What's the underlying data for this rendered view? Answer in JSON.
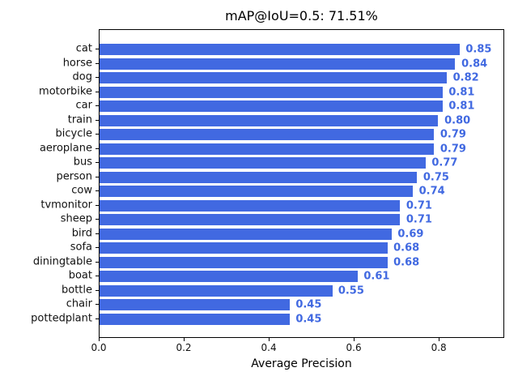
{
  "chart_data": {
    "type": "bar",
    "orientation": "horizontal",
    "title": "mAP@IoU=0.5: 71.51%",
    "xlabel": "Average Precision",
    "ylabel": "",
    "categories": [
      "cat",
      "horse",
      "dog",
      "motorbike",
      "car",
      "train",
      "bicycle",
      "aeroplane",
      "bus",
      "person",
      "cow",
      "tvmonitor",
      "sheep",
      "bird",
      "sofa",
      "diningtable",
      "boat",
      "bottle",
      "chair",
      "pottedplant"
    ],
    "values": [
      0.85,
      0.84,
      0.82,
      0.81,
      0.81,
      0.8,
      0.79,
      0.79,
      0.77,
      0.75,
      0.74,
      0.71,
      0.71,
      0.69,
      0.68,
      0.68,
      0.61,
      0.55,
      0.45,
      0.45
    ],
    "value_labels": [
      "0.85",
      "0.84",
      "0.82",
      "0.81",
      "0.81",
      "0.80",
      "0.79",
      "0.79",
      "0.77",
      "0.75",
      "0.74",
      "0.71",
      "0.71",
      "0.69",
      "0.68",
      "0.68",
      "0.61",
      "0.55",
      "0.45",
      "0.45"
    ],
    "xtick_labels": [
      "0.0",
      "0.2",
      "0.4",
      "0.6",
      "0.8"
    ],
    "xtick_values": [
      0.0,
      0.2,
      0.4,
      0.6,
      0.8
    ],
    "xlim": [
      0,
      0.954
    ],
    "grid": false,
    "legend": null,
    "bar_color": "#4169e1",
    "value_label_color": "#4169e1",
    "axis_color": "#000000",
    "background_color": "#ffffff"
  }
}
